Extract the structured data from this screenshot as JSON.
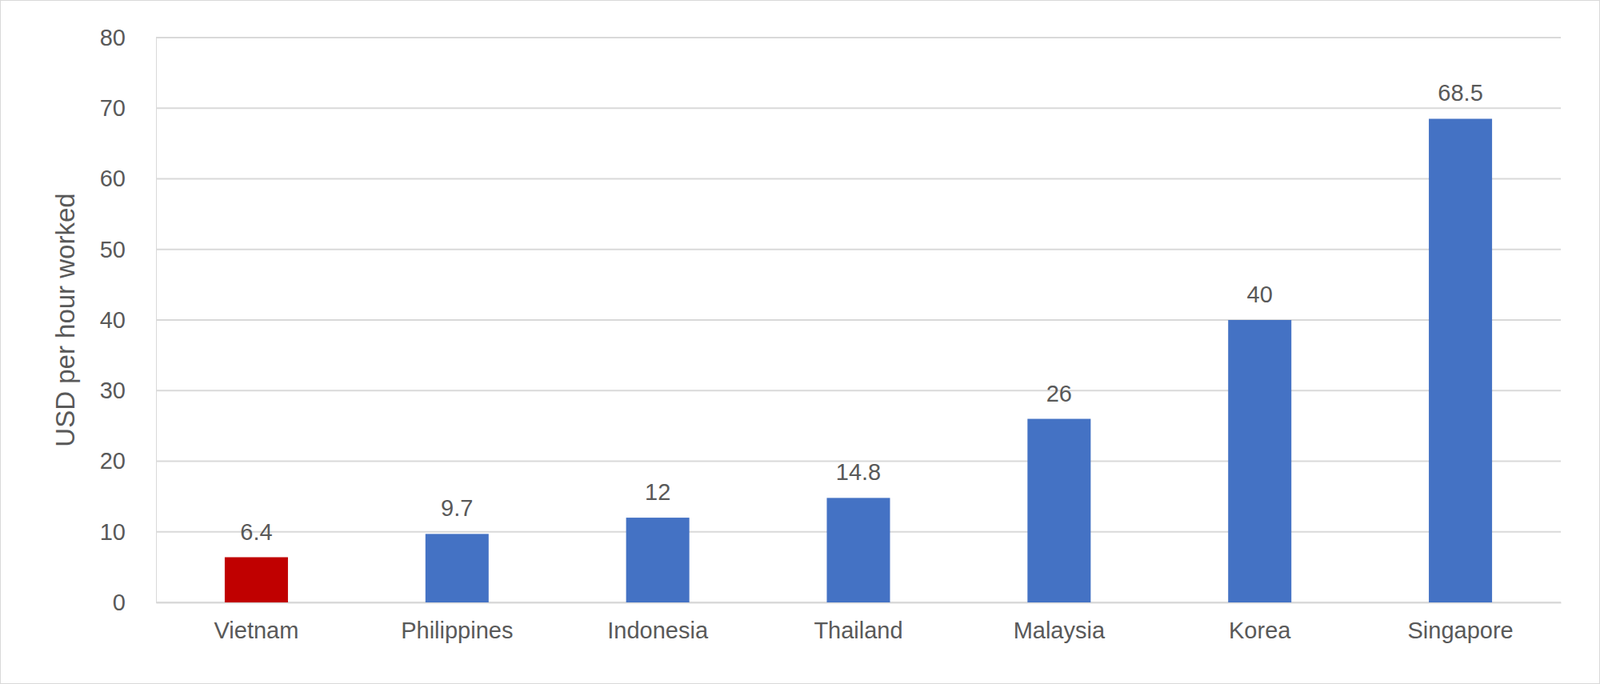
{
  "chart_data": {
    "type": "bar",
    "y_label": "USD per hour worked",
    "categories": [
      "Vietnam",
      "Philippines",
      "Indonesia",
      "Thailand",
      "Malaysia",
      "Korea",
      "Singapore"
    ],
    "values": [
      6.4,
      9.7,
      12,
      14.8,
      26,
      40,
      68.5
    ],
    "colors": [
      "#c00000",
      "#4472c4",
      "#4472c4",
      "#4472c4",
      "#4472c4",
      "#4472c4",
      "#4472c4"
    ],
    "ylim": [
      0,
      80
    ],
    "yticks": [
      0,
      10,
      20,
      30,
      40,
      50,
      60,
      70,
      80
    ],
    "grid": true,
    "data_labels": true
  }
}
